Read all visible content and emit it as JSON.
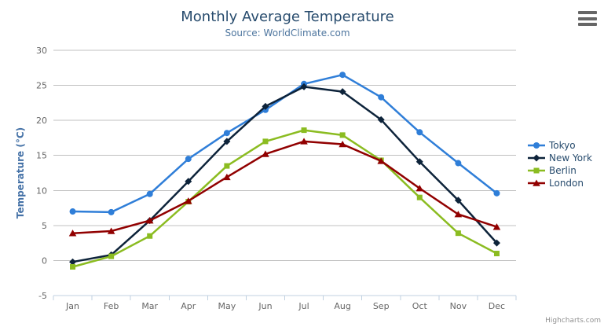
{
  "chart_data": {
    "type": "line",
    "title": "Monthly Average Temperature",
    "subtitle": "Source: WorldClimate.com",
    "categories": [
      "Jan",
      "Feb",
      "Mar",
      "Apr",
      "May",
      "Jun",
      "Jul",
      "Aug",
      "Sep",
      "Oct",
      "Nov",
      "Dec"
    ],
    "series": [
      {
        "name": "Tokyo",
        "color": "#2f7ed8",
        "marker": "circle",
        "values": [
          7.0,
          6.9,
          9.5,
          14.5,
          18.2,
          21.5,
          25.2,
          26.5,
          23.3,
          18.3,
          13.9,
          9.6
        ]
      },
      {
        "name": "New York",
        "color": "#0d233a",
        "marker": "diamond",
        "values": [
          -0.2,
          0.8,
          5.7,
          11.3,
          17.0,
          22.0,
          24.8,
          24.1,
          20.1,
          14.1,
          8.6,
          2.5
        ]
      },
      {
        "name": "Berlin",
        "color": "#8bbc21",
        "marker": "square",
        "values": [
          -0.9,
          0.6,
          3.5,
          8.4,
          13.5,
          17.0,
          18.6,
          17.9,
          14.3,
          9.0,
          3.9,
          1.0
        ]
      },
      {
        "name": "London",
        "color": "#910000",
        "marker": "triangle",
        "values": [
          3.9,
          4.2,
          5.7,
          8.5,
          11.9,
          15.2,
          17.0,
          16.6,
          14.2,
          10.3,
          6.6,
          4.8
        ]
      }
    ],
    "xlabel": "",
    "ylabel": "Temperature (°C)",
    "ylim": [
      -5,
      30
    ],
    "yticks": [
      -5,
      0,
      5,
      10,
      15,
      20,
      25,
      30
    ],
    "grid": true,
    "legend_position": "right"
  },
  "credits": {
    "label": "Highcharts.com"
  },
  "icons": {
    "context_menu": "hamburger-icon"
  },
  "colors": {
    "title": "#274b6d",
    "subtitle": "#4d759e",
    "axis_title": "#4572a7",
    "axis_label": "#666666",
    "grid": "#c0c0c0",
    "axis_line": "#c0d0e0",
    "legend_text": "#274b6d",
    "credits_text": "#909090",
    "menu_icon": "#666666",
    "background": "#ffffff"
  }
}
